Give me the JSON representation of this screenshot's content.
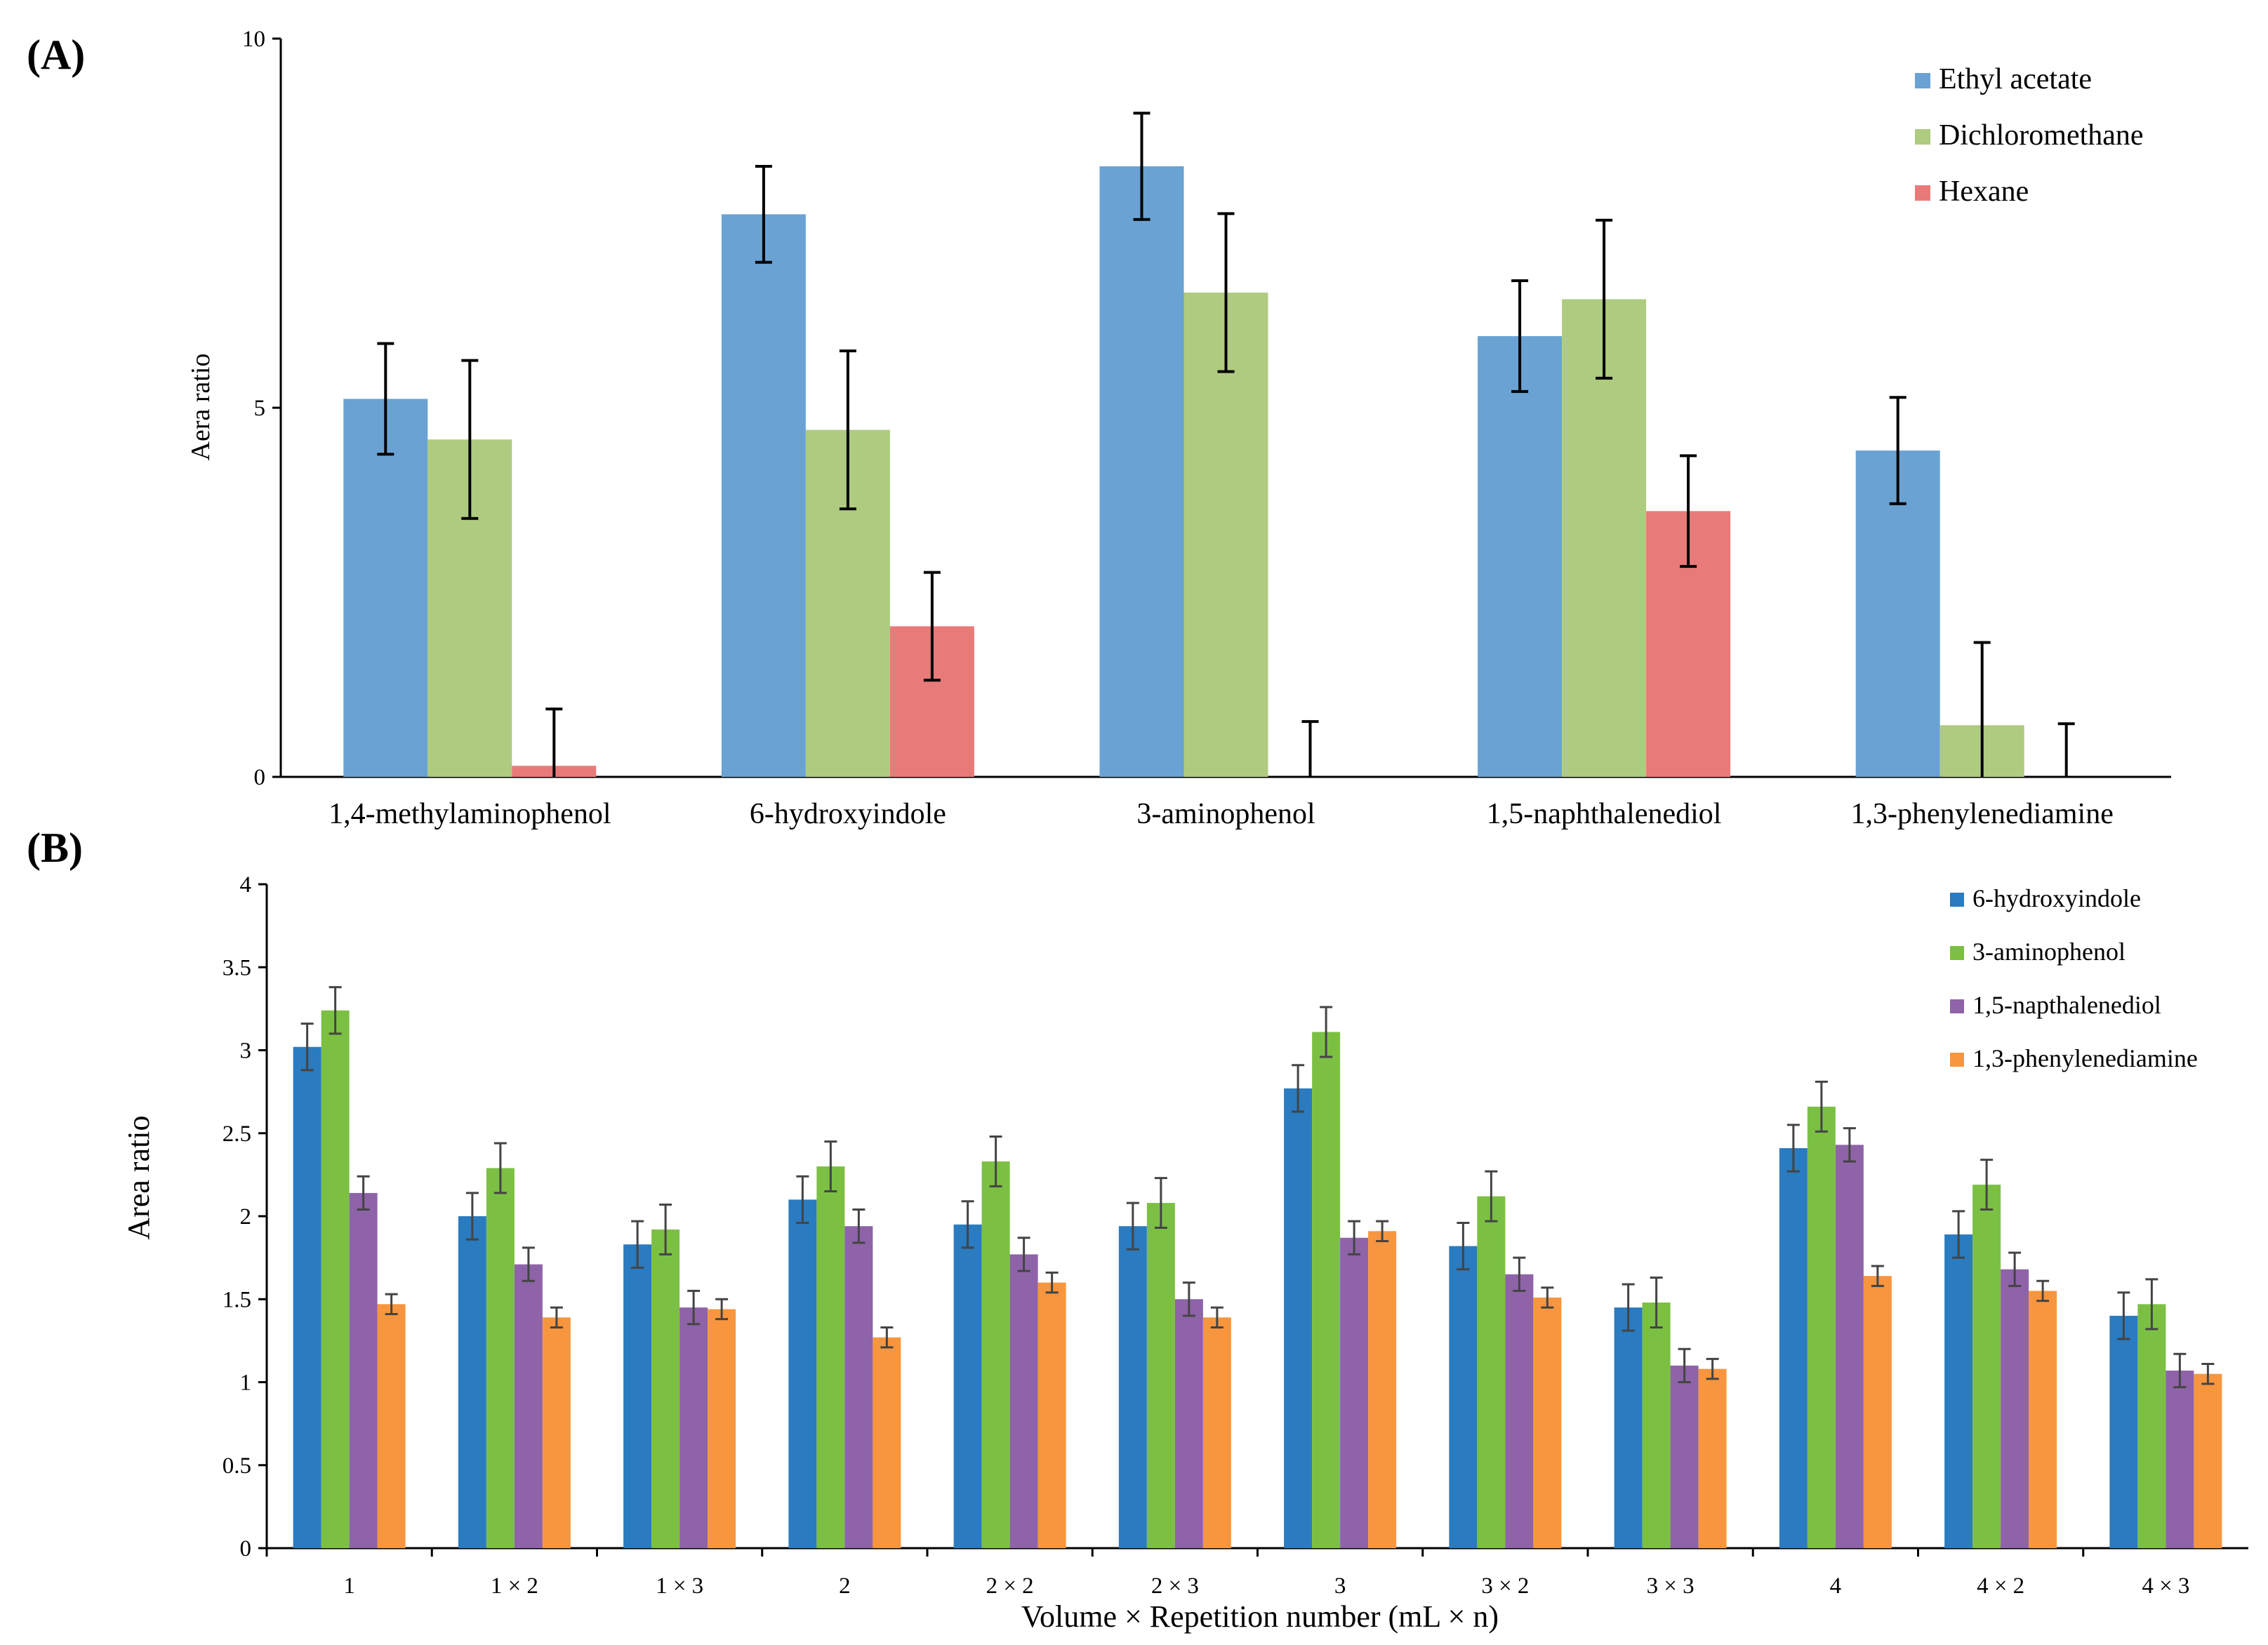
{
  "chart_data": [
    {
      "panel": "(A)",
      "type": "bar",
      "title": "",
      "xlabel": "",
      "ylabel": "Aera ratio",
      "ylim": [
        0,
        10
      ],
      "yticks": [
        "0",
        "5",
        "10"
      ],
      "categories": [
        "1,4-methylaminophenol",
        "6-hydroxyindole",
        "3-aminophenol",
        "1,5-naphthalenediol",
        "1,3-phenylenediamine"
      ],
      "series": [
        {
          "name": "Ethyl acetate",
          "color": "#6aa2d3",
          "values": [
            5.12,
            7.62,
            8.27,
            5.97,
            4.42
          ],
          "errors": [
            0.75,
            0.65,
            0.72,
            0.75,
            0.72
          ]
        },
        {
          "name": "Dichloromethane",
          "color": "#aecb80",
          "values": [
            4.57,
            4.7,
            6.56,
            6.47,
            0.7
          ],
          "errors": [
            1.07,
            1.07,
            1.07,
            1.07,
            1.12
          ]
        },
        {
          "name": "Hexane",
          "color": "#e87b79",
          "values": [
            0.15,
            2.04,
            0,
            3.6,
            0
          ],
          "errors": [
            0.77,
            0.73,
            0.75,
            0.75,
            0.72
          ]
        }
      ],
      "legend_position": "top-right"
    },
    {
      "panel": "(B)",
      "type": "bar",
      "title": "",
      "xlabel": "Volume × Repetition number (mL × n)",
      "ylabel": "Area ratio",
      "ylim": [
        0,
        4
      ],
      "yticks": [
        "0",
        "0.5",
        "1",
        "1.5",
        "2",
        "2.5",
        "3",
        "3.5",
        "4"
      ],
      "categories": [
        "1",
        "1 × 2",
        "1 × 3",
        "2",
        "2 × 2",
        "2 × 3",
        "3",
        "3 × 2",
        "3 × 3",
        "4",
        "4 × 2",
        "4 × 3"
      ],
      "series": [
        {
          "name": "6-hydroxyindole",
          "color": "#2a7bbf",
          "values": [
            3.02,
            2.0,
            1.83,
            2.1,
            1.95,
            1.94,
            2.77,
            1.82,
            1.45,
            2.41,
            1.89,
            1.4
          ],
          "errors": [
            0.14,
            0.14,
            0.14,
            0.14,
            0.14,
            0.14,
            0.14,
            0.14,
            0.14,
            0.14,
            0.14,
            0.14
          ]
        },
        {
          "name": "3-aminophenol",
          "color": "#7bc043",
          "values": [
            3.24,
            2.29,
            1.92,
            2.3,
            2.33,
            2.08,
            3.11,
            2.12,
            1.48,
            2.66,
            2.19,
            1.47
          ],
          "errors": [
            0.14,
            0.15,
            0.15,
            0.15,
            0.15,
            0.15,
            0.15,
            0.15,
            0.15,
            0.15,
            0.15,
            0.15
          ]
        },
        {
          "name": "1,5-napthalenediol",
          "color": "#8e63a8",
          "values": [
            2.14,
            1.71,
            1.45,
            1.94,
            1.77,
            1.5,
            1.87,
            1.65,
            1.1,
            2.43,
            1.68,
            1.07
          ],
          "errors": [
            0.1,
            0.1,
            0.1,
            0.1,
            0.1,
            0.1,
            0.1,
            0.1,
            0.1,
            0.1,
            0.1,
            0.1
          ]
        },
        {
          "name": "1,3-phenylenediamine",
          "color": "#f7963e",
          "values": [
            1.47,
            1.39,
            1.44,
            1.27,
            1.6,
            1.39,
            1.91,
            1.51,
            1.08,
            1.64,
            1.55,
            1.05
          ],
          "errors": [
            0.06,
            0.06,
            0.06,
            0.06,
            0.06,
            0.06,
            0.06,
            0.06,
            0.06,
            0.06,
            0.06,
            0.06
          ]
        }
      ],
      "legend_position": "top-right"
    }
  ]
}
